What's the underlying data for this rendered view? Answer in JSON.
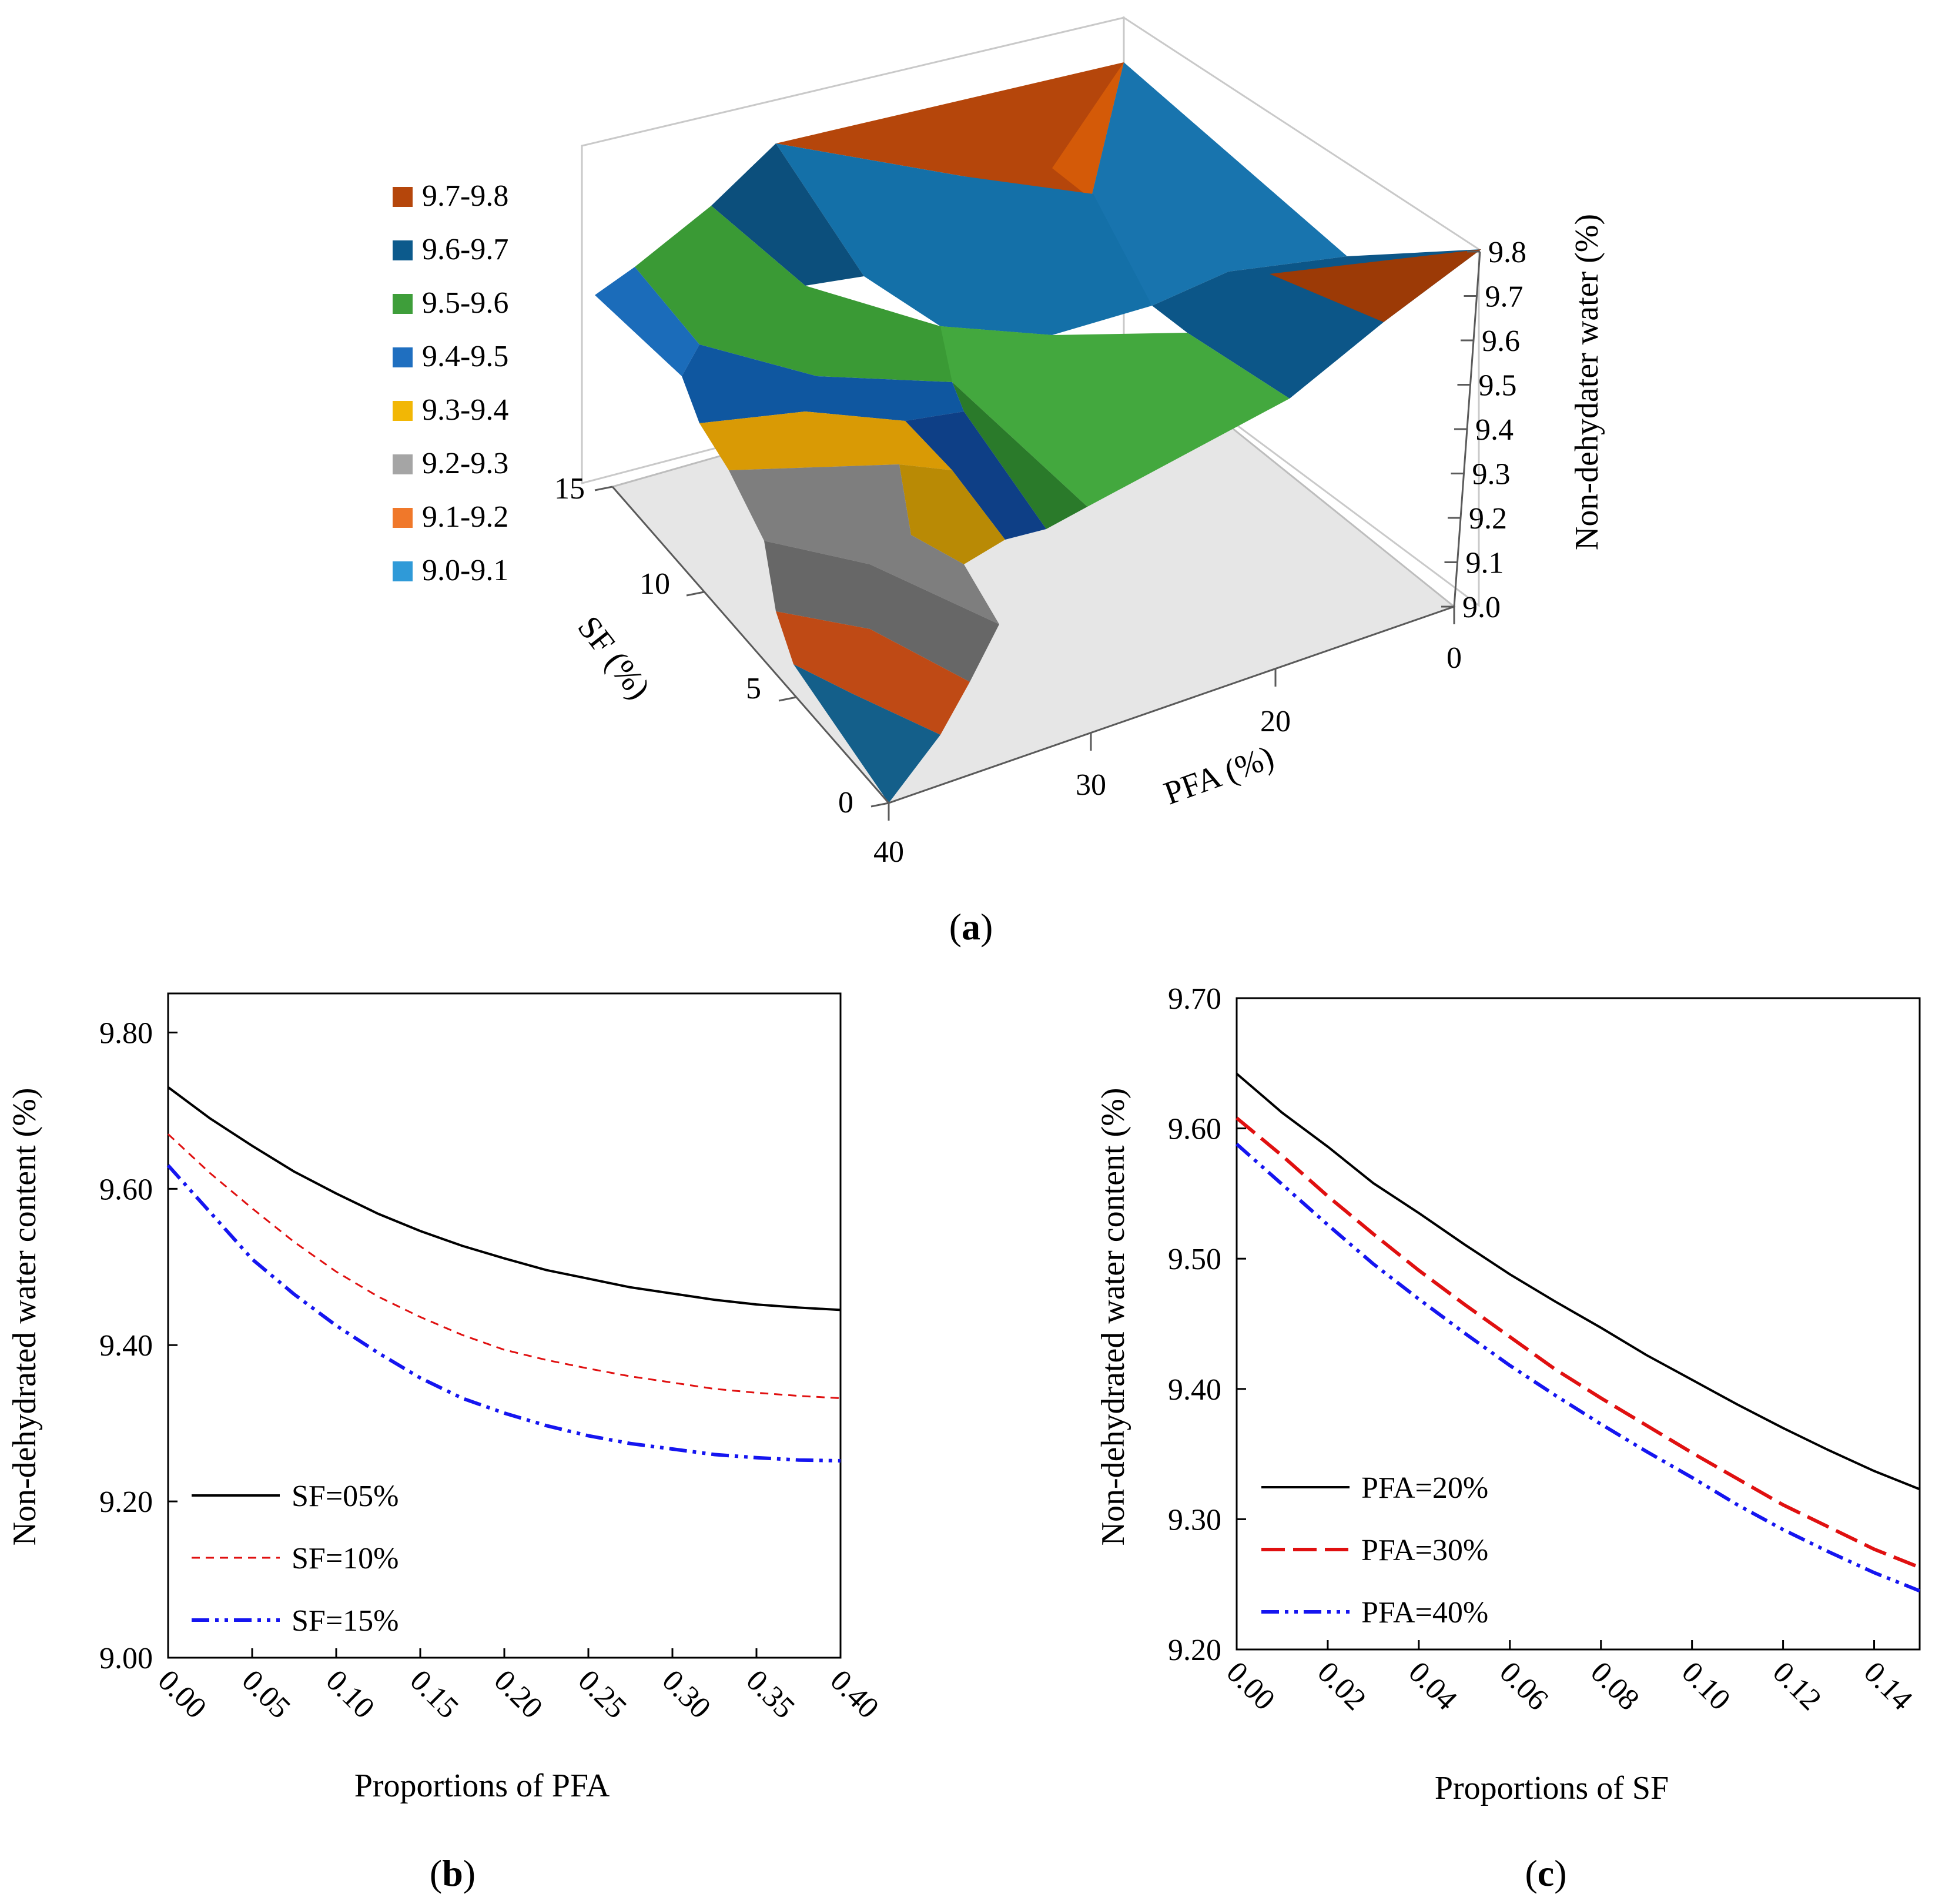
{
  "chart_data": [
    {
      "panel": "a",
      "type": "surface3d",
      "caption": "a",
      "xlabel": "PFA (%)",
      "ylabel": "SF (%)",
      "zlabel": "Non-dehydater water (%)",
      "x_ticks": [
        "0",
        "20",
        "30",
        "40"
      ],
      "y_ticks": [
        "0",
        "5",
        "10",
        "15"
      ],
      "z_ticks": [
        "9.0",
        "9.1",
        "9.2",
        "9.3",
        "9.4",
        "9.5",
        "9.6",
        "9.7",
        "9.8"
      ],
      "zlim": [
        9.0,
        9.8
      ],
      "legend": [
        {
          "label": "9.7-9.8",
          "color": "#B5460B"
        },
        {
          "label": "9.6-9.7",
          "color": "#0C5A8C"
        },
        {
          "label": "9.5-9.6",
          "color": "#3E9E3A"
        },
        {
          "label": "9.4-9.5",
          "color": "#1F6FC0"
        },
        {
          "label": "9.3-9.4",
          "color": "#F2B705"
        },
        {
          "label": "9.2-9.3",
          "color": "#A5A5A5"
        },
        {
          "label": "9.1-9.2",
          "color": "#F0782A"
        },
        {
          "label": "9.0-9.1",
          "color": "#2F9AD8"
        }
      ]
    },
    {
      "panel": "b",
      "type": "line",
      "caption": "b",
      "xlabel": "Proportions of PFA",
      "ylabel": "Non-dehydrated  water  content  (%)",
      "xlim": [
        0,
        0.4
      ],
      "ylim": [
        9.0,
        9.85
      ],
      "x_ticks": [
        "0.00",
        "0.05",
        "0.10",
        "0.15",
        "0.20",
        "0.25",
        "0.30",
        "0.35",
        "0.40"
      ],
      "y_ticks": [
        "9.00",
        "9.20",
        "9.40",
        "9.60",
        "9.80"
      ],
      "x": [
        0.0,
        0.025,
        0.05,
        0.075,
        0.1,
        0.125,
        0.15,
        0.175,
        0.2,
        0.225,
        0.25,
        0.275,
        0.3,
        0.325,
        0.35,
        0.375,
        0.4
      ],
      "series": [
        {
          "name": "SF=05%",
          "color": "#000000",
          "dash": "",
          "values": [
            9.73,
            9.69,
            9.655,
            9.622,
            9.594,
            9.568,
            9.546,
            9.527,
            9.511,
            9.496,
            9.485,
            9.474,
            9.466,
            9.458,
            9.452,
            9.448,
            9.445
          ]
        },
        {
          "name": "SF=10%",
          "color": "#E01010",
          "dash": "14 10",
          "values": [
            9.67,
            9.62,
            9.575,
            9.532,
            9.494,
            9.462,
            9.436,
            9.413,
            9.394,
            9.381,
            9.37,
            9.36,
            9.352,
            9.344,
            9.339,
            9.335,
            9.332
          ]
        },
        {
          "name": "SF=15%",
          "color": "#1515F0",
          "dash": "30 10 6 10 6 10",
          "values": [
            9.63,
            9.57,
            9.51,
            9.465,
            9.425,
            9.39,
            9.358,
            9.332,
            9.313,
            9.297,
            9.284,
            9.274,
            9.267,
            9.26,
            9.256,
            9.253,
            9.252
          ]
        }
      ]
    },
    {
      "panel": "c",
      "type": "line",
      "caption": "c",
      "xlabel": "Proportions of SF",
      "ylabel": "Non-dehydrated water content (%)",
      "xlim": [
        0,
        0.15
      ],
      "ylim": [
        9.2,
        9.7
      ],
      "x_ticks": [
        "0.00",
        "0.02",
        "0.04",
        "0.06",
        "0.08",
        "0.10",
        "0.12",
        "0.14"
      ],
      "y_ticks": [
        "9.20",
        "9.30",
        "9.40",
        "9.50",
        "9.60",
        "9.70"
      ],
      "x": [
        0.0,
        0.01,
        0.02,
        0.03,
        0.04,
        0.05,
        0.06,
        0.07,
        0.08,
        0.09,
        0.1,
        0.11,
        0.12,
        0.13,
        0.14,
        0.15
      ],
      "series": [
        {
          "name": "PFA=20%",
          "color": "#000000",
          "dash": "",
          "values": [
            9.642,
            9.612,
            9.586,
            9.558,
            9.535,
            9.511,
            9.488,
            9.467,
            9.447,
            9.426,
            9.407,
            9.388,
            9.37,
            9.353,
            9.337,
            9.323
          ]
        },
        {
          "name": "PFA=30%",
          "color": "#E01010",
          "dash": "40 14",
          "values": [
            9.608,
            9.579,
            9.548,
            9.519,
            9.491,
            9.465,
            9.44,
            9.415,
            9.393,
            9.372,
            9.351,
            9.331,
            9.311,
            9.294,
            9.277,
            9.263
          ]
        },
        {
          "name": "PFA=40%",
          "color": "#1515F0",
          "dash": "30 10 6 10 6 10",
          "values": [
            9.588,
            9.557,
            9.526,
            9.496,
            9.469,
            9.443,
            9.418,
            9.395,
            9.373,
            9.352,
            9.332,
            9.311,
            9.292,
            9.275,
            9.259,
            9.245
          ]
        }
      ]
    }
  ]
}
